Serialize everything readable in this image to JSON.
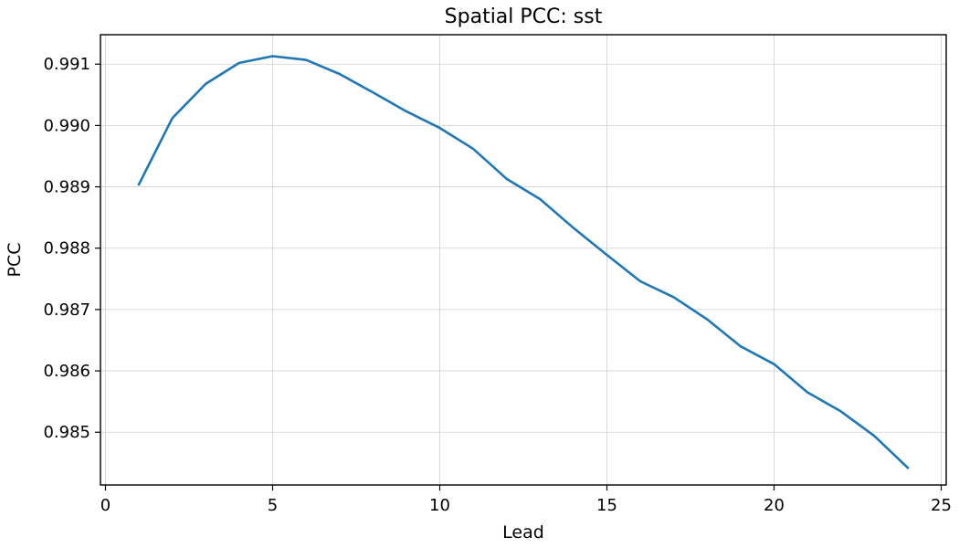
{
  "chart_data": {
    "type": "line",
    "title": "Spatial PCC: sst",
    "xlabel": "Lead",
    "ylabel": "PCC",
    "xlim": [
      -0.15,
      25.15
    ],
    "ylim": [
      0.98414,
      0.99148
    ],
    "grid": true,
    "x_ticks": [
      0,
      5,
      10,
      15,
      20,
      25
    ],
    "y_ticks": [
      0.985,
      0.986,
      0.987,
      0.988,
      0.989,
      0.99,
      0.991
    ],
    "x_tick_labels": [
      "0",
      "5",
      "10",
      "15",
      "20",
      "25"
    ],
    "y_tick_labels": [
      "0.985",
      "0.986",
      "0.987",
      "0.988",
      "0.989",
      "0.990",
      "0.991"
    ],
    "series": [
      {
        "color": "#1f77b4",
        "x": [
          1,
          2,
          3,
          4,
          5,
          6,
          7,
          8,
          9,
          10,
          11,
          12,
          13,
          14,
          15,
          16,
          17,
          18,
          19,
          20,
          21,
          22,
          23,
          24
        ],
        "y": [
          0.98904,
          0.99012,
          0.99068,
          0.99102,
          0.99113,
          0.99107,
          0.99084,
          0.99054,
          0.99023,
          0.98996,
          0.98962,
          0.98913,
          0.9888,
          0.98833,
          0.98789,
          0.98746,
          0.9872,
          0.98684,
          0.9864,
          0.98611,
          0.98565,
          0.98534,
          0.98494,
          0.98442
        ]
      }
    ]
  }
}
